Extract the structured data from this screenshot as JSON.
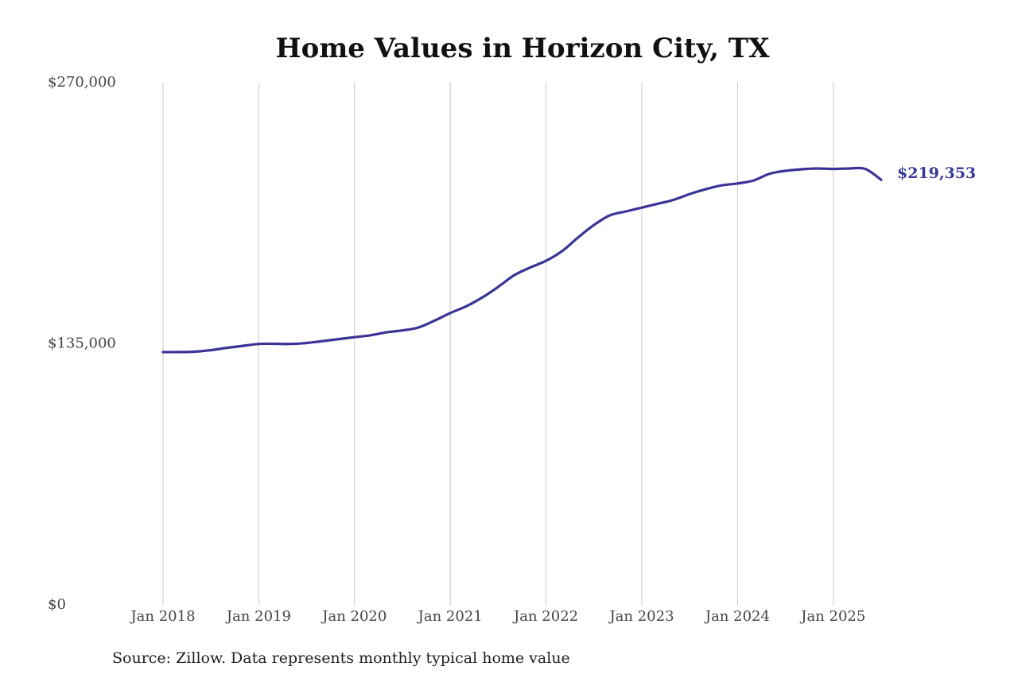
{
  "chart_data": {
    "type": "line",
    "title": "Home Values in Horizon City, TX",
    "xlabel": "",
    "ylabel": "",
    "ylim": [
      0,
      270000
    ],
    "y_tick_values": [
      0,
      135000,
      270000
    ],
    "y_tick_labels": [
      "$0",
      "$135,000",
      "$270,000"
    ],
    "x_tick_labels": [
      "Jan 2018",
      "Jan 2019",
      "Jan 2020",
      "Jan 2021",
      "Jan 2022",
      "Jan 2023",
      "Jan 2024",
      "Jan 2025"
    ],
    "grid": "vertical",
    "line_color": "#3a3496",
    "end_label": "$219,353",
    "source": "Source: Zillow. Data represents monthly typical home value",
    "series": [
      {
        "x": [
          "2018-01",
          "2018-03",
          "2018-05",
          "2018-07",
          "2018-09",
          "2018-11",
          "2019-01",
          "2019-03",
          "2019-05",
          "2019-07",
          "2019-09",
          "2019-11",
          "2020-01",
          "2020-03",
          "2020-05",
          "2020-07",
          "2020-09",
          "2020-11",
          "2021-01",
          "2021-03",
          "2021-05",
          "2021-07",
          "2021-09",
          "2021-11",
          "2022-01",
          "2022-03",
          "2022-05",
          "2022-07",
          "2022-09",
          "2022-11",
          "2023-01",
          "2023-03",
          "2023-05",
          "2023-07",
          "2023-09",
          "2023-11",
          "2024-01",
          "2024-03",
          "2024-05",
          "2024-07",
          "2024-09",
          "2024-11",
          "2025-01",
          "2025-03",
          "2025-05",
          "2025-07"
        ],
        "values": [
          130300,
          130300,
          130500,
          131300,
          132500,
          133500,
          134500,
          134600,
          134500,
          135000,
          136000,
          137000,
          138000,
          139000,
          140500,
          141500,
          143000,
          146500,
          150500,
          154000,
          158500,
          164000,
          170000,
          174000,
          177500,
          182500,
          189500,
          196000,
          201000,
          203000,
          205000,
          207000,
          209000,
          212000,
          214500,
          216500,
          217500,
          219000,
          222500,
          224000,
          224800,
          225200,
          225000,
          225200,
          225000,
          219353
        ]
      }
    ]
  }
}
